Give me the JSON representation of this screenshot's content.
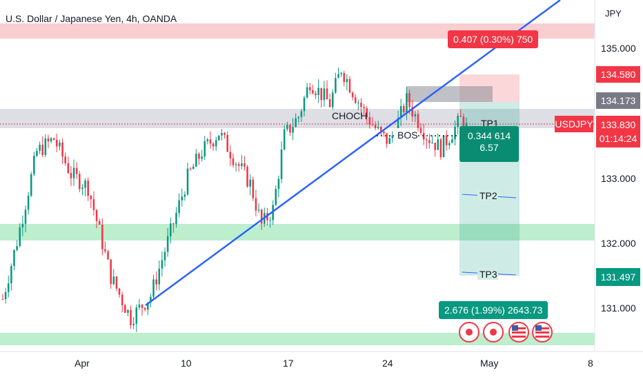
{
  "header": {
    "title": "U.S. Dollar / Japanese Yen, 4h, OANDA",
    "currency": "JPY"
  },
  "colors": {
    "up": "#089981",
    "down": "#f23645",
    "trendline": "#2962ff",
    "supply_zone": "#f7c5c9",
    "demand_zone": "#b2ebc6",
    "resistance_zone": "#d1d4dc"
  },
  "annotations": {
    "choch": "CHOCH",
    "bos": "BOS",
    "tp1": "TP1",
    "tp2": "TP2",
    "tp3": "TP3",
    "top_measure": "0.407 (0.30%) 750",
    "stop_badge_line1": "0.344",
    "stop_badge_line2": "614",
    "stop_badge_line3": "6.57",
    "target_measure": "2.676 (1.99%) 2643.73"
  },
  "price_labels": {
    "upper_red": "134.580",
    "gray": "134.173",
    "symbol": "USDJPY",
    "current": "133.830",
    "countdown": "01:14:24",
    "target": "131.497"
  },
  "chart_data": {
    "type": "candlestick",
    "title": "U.S. Dollar / Japanese Yen, 4h, OANDA",
    "symbol": "USDJPY",
    "interval": "4h",
    "source": "OANDA",
    "y_axis": {
      "ticks": [
        "135.000",
        "133.000",
        "132.000",
        "131.000"
      ],
      "tick_values": [
        135,
        133,
        132,
        131
      ],
      "side": "right"
    },
    "x_axis": {
      "ticks": [
        "Apr",
        "10",
        "17",
        "24",
        "May",
        "8"
      ]
    },
    "ylim": [
      130.33,
      135.82
    ],
    "current_price": 133.83,
    "long_position": {
      "entry": 133.83,
      "stop": 134.58,
      "tp1": 133.55,
      "tp2": 132.62,
      "tp3": 131.497
    },
    "zones": {
      "supply": [
        135.28,
        135.55
      ],
      "resistance": [
        133.79,
        134.05
      ],
      "demand_mid": [
        132.07,
        132.31
      ],
      "demand_low": [
        130.45,
        130.64
      ]
    },
    "anchors": [
      {
        "t": 0,
        "p": 131.15
      },
      {
        "t": 5,
        "p": 132.05
      },
      {
        "t": 12,
        "p": 133.45
      },
      {
        "t": 18,
        "p": 133.65
      },
      {
        "t": 24,
        "p": 133.1
      },
      {
        "t": 30,
        "p": 132.9
      },
      {
        "t": 38,
        "p": 131.5
      },
      {
        "t": 45,
        "p": 130.85
      },
      {
        "t": 52,
        "p": 131.2
      },
      {
        "t": 58,
        "p": 132.05
      },
      {
        "t": 65,
        "p": 133.05
      },
      {
        "t": 70,
        "p": 133.45
      },
      {
        "t": 76,
        "p": 133.75
      },
      {
        "t": 82,
        "p": 133.3
      },
      {
        "t": 87,
        "p": 132.95
      },
      {
        "t": 91,
        "p": 132.3
      },
      {
        "t": 95,
        "p": 132.55
      },
      {
        "t": 99,
        "p": 133.7
      },
      {
        "t": 104,
        "p": 134.0
      },
      {
        "t": 108,
        "p": 134.55
      },
      {
        "t": 115,
        "p": 134.2
      },
      {
        "t": 119,
        "p": 134.75
      },
      {
        "t": 123,
        "p": 134.4
      },
      {
        "t": 128,
        "p": 134.0
      },
      {
        "t": 133,
        "p": 133.7
      },
      {
        "t": 136,
        "p": 133.6
      },
      {
        "t": 142,
        "p": 134.25
      },
      {
        "t": 149,
        "p": 133.7
      },
      {
        "t": 154,
        "p": 133.5
      },
      {
        "t": 161,
        "p": 133.95
      },
      {
        "t": 163,
        "p": 133.83
      }
    ]
  }
}
